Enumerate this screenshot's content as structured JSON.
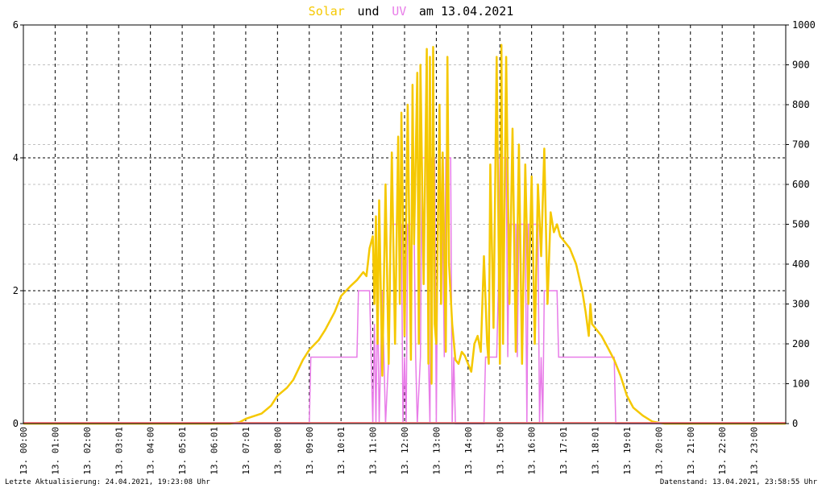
{
  "title": {
    "solar": "Solar",
    "und": "und",
    "uv": "UV",
    "rest": "am 13.04.2021"
  },
  "footer": {
    "left": "Letzte Aktualisierung: 24.04.2021, 19:23:08 Uhr",
    "right": "Datenstand: 13.04.2021, 23:58:55 Uhr"
  },
  "colors": {
    "solar": "#f5c800",
    "uv": "#e87ce8",
    "baseline": "#ff8080",
    "grid": "#000000",
    "minor_grid": "#c0c0c0"
  },
  "chart_data": {
    "type": "line",
    "title": "Solar und UV am 13.04.2021",
    "grid": true,
    "x_ticks": [
      "13. 00:00",
      "13. 01:00",
      "13. 02:00",
      "13. 03:01",
      "13. 04:00",
      "13. 05:01",
      "13. 06:01",
      "13. 07:01",
      "13. 08:00",
      "13. 09:00",
      "13. 10:01",
      "13. 11:00",
      "13. 12:00",
      "13. 13:00",
      "13. 14:00",
      "13. 15:00",
      "13. 16:00",
      "13. 17:01",
      "13. 18:01",
      "13. 19:01",
      "13. 20:00",
      "13. 21:00",
      "13. 22:00",
      "13. 23:00"
    ],
    "x_range_hours": [
      0,
      24
    ],
    "y_left": {
      "range": [
        0,
        6
      ],
      "ticks": [
        0,
        2,
        4,
        6
      ]
    },
    "y_right": {
      "range": [
        0,
        1000
      ],
      "ticks": [
        0,
        100,
        200,
        300,
        400,
        500,
        600,
        700,
        800,
        900,
        1000
      ]
    },
    "series": [
      {
        "name": "Solar",
        "axis": "right",
        "points": [
          [
            0,
            0
          ],
          [
            6.5,
            0
          ],
          [
            6.8,
            3
          ],
          [
            7.0,
            12
          ],
          [
            7.5,
            25
          ],
          [
            7.8,
            45
          ],
          [
            8.0,
            70
          ],
          [
            8.3,
            90
          ],
          [
            8.5,
            110
          ],
          [
            8.8,
            160
          ],
          [
            9.0,
            185
          ],
          [
            9.3,
            210
          ],
          [
            9.5,
            235
          ],
          [
            9.8,
            280
          ],
          [
            10.0,
            320
          ],
          [
            10.3,
            345
          ],
          [
            10.5,
            360
          ],
          [
            10.7,
            380
          ],
          [
            10.8,
            370
          ],
          [
            10.9,
            440
          ],
          [
            11.0,
            470
          ],
          [
            11.05,
            300
          ],
          [
            11.1,
            520
          ],
          [
            11.15,
            200
          ],
          [
            11.2,
            560
          ],
          [
            11.3,
            120
          ],
          [
            11.4,
            600
          ],
          [
            11.5,
            150
          ],
          [
            11.6,
            680
          ],
          [
            11.7,
            200
          ],
          [
            11.8,
            720
          ],
          [
            11.85,
            300
          ],
          [
            11.9,
            780
          ],
          [
            12.0,
            220
          ],
          [
            12.1,
            800
          ],
          [
            12.2,
            160
          ],
          [
            12.25,
            850
          ],
          [
            12.3,
            450
          ],
          [
            12.4,
            880
          ],
          [
            12.45,
            200
          ],
          [
            12.5,
            900
          ],
          [
            12.6,
            350
          ],
          [
            12.7,
            940
          ],
          [
            12.75,
            150
          ],
          [
            12.8,
            920
          ],
          [
            12.85,
            100
          ],
          [
            12.9,
            945
          ],
          [
            12.95,
            250
          ],
          [
            13.0,
            200
          ],
          [
            13.1,
            800
          ],
          [
            13.15,
            300
          ],
          [
            13.2,
            680
          ],
          [
            13.3,
            180
          ],
          [
            13.35,
            920
          ],
          [
            13.4,
            400
          ],
          [
            13.5,
            250
          ],
          [
            13.6,
            160
          ],
          [
            13.7,
            150
          ],
          [
            13.8,
            180
          ],
          [
            13.9,
            170
          ],
          [
            14.0,
            150
          ],
          [
            14.1,
            130
          ],
          [
            14.2,
            200
          ],
          [
            14.3,
            220
          ],
          [
            14.4,
            180
          ],
          [
            14.5,
            420
          ],
          [
            14.6,
            200
          ],
          [
            14.65,
            150
          ],
          [
            14.7,
            650
          ],
          [
            14.8,
            240
          ],
          [
            14.9,
            920
          ],
          [
            15.0,
            150
          ],
          [
            15.05,
            950
          ],
          [
            15.1,
            200
          ],
          [
            15.2,
            920
          ],
          [
            15.3,
            300
          ],
          [
            15.4,
            740
          ],
          [
            15.5,
            180
          ],
          [
            15.6,
            700
          ],
          [
            15.7,
            150
          ],
          [
            15.8,
            650
          ],
          [
            15.9,
            300
          ],
          [
            16.0,
            620
          ],
          [
            16.1,
            200
          ],
          [
            16.2,
            600
          ],
          [
            16.3,
            420
          ],
          [
            16.4,
            690
          ],
          [
            16.5,
            300
          ],
          [
            16.6,
            530
          ],
          [
            16.7,
            480
          ],
          [
            16.8,
            500
          ],
          [
            16.9,
            470
          ],
          [
            17.0,
            460
          ],
          [
            17.2,
            440
          ],
          [
            17.4,
            400
          ],
          [
            17.6,
            330
          ],
          [
            17.7,
            280
          ],
          [
            17.8,
            220
          ],
          [
            17.85,
            300
          ],
          [
            17.9,
            250
          ],
          [
            18.0,
            240
          ],
          [
            18.2,
            220
          ],
          [
            18.4,
            190
          ],
          [
            18.6,
            160
          ],
          [
            18.8,
            120
          ],
          [
            19.0,
            70
          ],
          [
            19.2,
            40
          ],
          [
            19.5,
            20
          ],
          [
            19.8,
            5
          ],
          [
            20.0,
            2
          ],
          [
            20.2,
            0
          ],
          [
            24,
            0
          ]
        ]
      },
      {
        "name": "UV",
        "axis": "left",
        "points": [
          [
            0,
            0
          ],
          [
            9.0,
            0
          ],
          [
            9.05,
            1
          ],
          [
            10.5,
            1
          ],
          [
            10.55,
            2
          ],
          [
            10.9,
            2
          ],
          [
            10.95,
            1
          ],
          [
            11.0,
            0
          ],
          [
            11.05,
            1.5
          ],
          [
            11.1,
            0
          ],
          [
            11.15,
            2
          ],
          [
            11.2,
            0
          ],
          [
            11.3,
            2
          ],
          [
            11.35,
            1
          ],
          [
            11.4,
            0
          ],
          [
            11.5,
            1
          ],
          [
            11.55,
            3
          ],
          [
            11.9,
            3
          ],
          [
            11.95,
            0
          ],
          [
            12.0,
            1
          ],
          [
            12.05,
            0
          ],
          [
            12.1,
            3
          ],
          [
            12.3,
            3
          ],
          [
            12.35,
            1
          ],
          [
            12.4,
            0
          ],
          [
            12.5,
            1
          ],
          [
            12.55,
            4
          ],
          [
            12.7,
            4
          ],
          [
            12.75,
            1
          ],
          [
            12.8,
            0
          ],
          [
            12.85,
            4
          ],
          [
            12.95,
            4
          ],
          [
            13.0,
            0
          ],
          [
            13.05,
            3
          ],
          [
            13.2,
            3
          ],
          [
            13.25,
            1
          ],
          [
            13.3,
            4
          ],
          [
            13.45,
            4
          ],
          [
            13.5,
            0
          ],
          [
            13.55,
            1
          ],
          [
            13.6,
            0
          ],
          [
            14.5,
            0
          ],
          [
            14.55,
            1
          ],
          [
            14.9,
            1
          ],
          [
            14.95,
            2
          ],
          [
            15.0,
            4
          ],
          [
            15.2,
            4
          ],
          [
            15.25,
            1
          ],
          [
            15.3,
            3
          ],
          [
            15.5,
            3
          ],
          [
            15.55,
            1
          ],
          [
            15.6,
            3
          ],
          [
            15.8,
            3
          ],
          [
            15.85,
            0
          ],
          [
            15.9,
            3
          ],
          [
            16.2,
            3
          ],
          [
            16.25,
            0
          ],
          [
            16.3,
            1
          ],
          [
            16.35,
            0
          ],
          [
            16.4,
            2
          ],
          [
            16.8,
            2
          ],
          [
            16.85,
            1
          ],
          [
            17.0,
            1
          ],
          [
            18.6,
            1
          ],
          [
            18.65,
            0
          ],
          [
            24,
            0
          ]
        ]
      }
    ]
  }
}
